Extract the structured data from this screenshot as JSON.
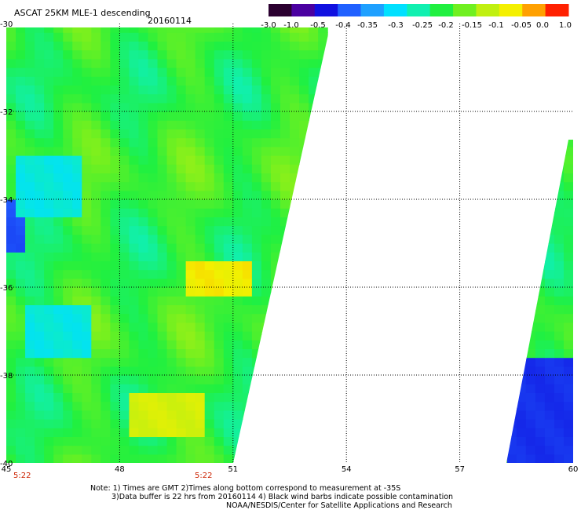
{
  "header": {
    "title": "ASCAT 25KM MLE-1 descending",
    "date": "20160114"
  },
  "colorbar": {
    "tick_labels": [
      "-3.0",
      "-1.0",
      "-0.5",
      "-0.4",
      "-0.35",
      "-0.3",
      "-0.25",
      "-0.2",
      "-0.15",
      "-0.1",
      "-0.05",
      "0.0",
      "1.0"
    ],
    "colors": [
      "#2b0030",
      "#4a00a0",
      "#1010e0",
      "#2060ff",
      "#1ea0ff",
      "#00e0ff",
      "#10f0b0",
      "#20f040",
      "#70f020",
      "#c0f010",
      "#f4f000",
      "#ffa000",
      "#ff2000"
    ]
  },
  "times": {
    "left": "5:22",
    "middle": "5:22"
  },
  "notes": {
    "line1": "Note: 1) Times are GMT 2)Times along bottom correspond to measurement at -35S",
    "line2": "3)Data buffer is 22 hrs from 20160114 4) Black wind barbs indicate possible contamination",
    "line3": "NOAA/NESDIS/Center for Satellite Applications and Research"
  },
  "chart_data": {
    "type": "heatmap",
    "title": "ASCAT 25KM MLE-1 descending",
    "xlim": [
      45,
      60
    ],
    "ylim": [
      -40,
      -30
    ],
    "x_ticks": [
      "45",
      "48",
      "51",
      "54",
      "57",
      "60"
    ],
    "y_ticks": [
      "-30",
      "-32",
      "-34",
      "-36",
      "-38",
      "-40"
    ],
    "grid": true,
    "value_range": [
      -3.0,
      1.0
    ],
    "swaths": [
      {
        "region": "west swath",
        "lat_range": [
          -40,
          -30
        ],
        "typical_value": -0.2,
        "features": [
          {
            "area": "lat -36 to -35.5, lon 49.8 to 51.4",
            "value": -0.05
          },
          {
            "area": "lat -39.3 to -38.5, lon 48.3 to 50.2",
            "value": -0.08
          },
          {
            "area": "west edge, lat -35 to -34",
            "value": -0.4
          },
          {
            "area": "lat -37.5 to -36.5, lon 45.5 to 47",
            "value": -0.28
          }
        ]
      },
      {
        "region": "east swath",
        "lat_range": [
          -40,
          -32.8
        ],
        "typical_value": -0.18,
        "features": [
          {
            "area": "lat -40 to -37.5, lon 58.3 to 60",
            "value": -0.45
          }
        ]
      }
    ]
  }
}
